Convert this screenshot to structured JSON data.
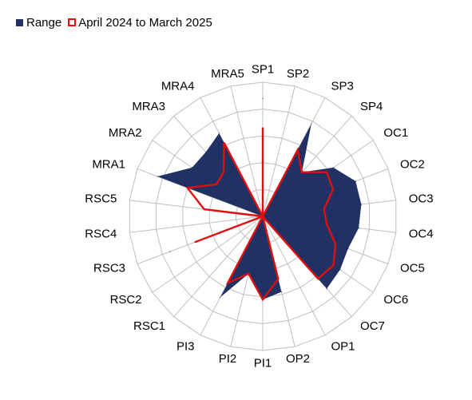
{
  "chart_data": {
    "type": "radar",
    "title": "",
    "categories": [
      "SP1",
      "SP2",
      "SP3",
      "SP4",
      "OC1",
      "OC2",
      "OC3",
      "OC4",
      "OC5",
      "OC6",
      "OC7",
      "OP1",
      "OP2",
      "PI1",
      "PI2",
      "PI3",
      "RSC1",
      "RSC2",
      "RSC3",
      "RSC4",
      "RSC5",
      "MRA1",
      "MRA2",
      "MRA3",
      "MRA4",
      "MRA5"
    ],
    "rlim": [
      0,
      5
    ],
    "grid": true,
    "legend_position": "top-left",
    "series": [
      {
        "name": "Range",
        "style": "filled-area",
        "color": "#213164",
        "upper": [
          4.4,
          0.0,
          3.9,
          2.2,
          3.2,
          3.7,
          3.7,
          3.6,
          3.4,
          3.5,
          3.6,
          0.0,
          2.9,
          3.1,
          2.2,
          3.4,
          0.0,
          0.0,
          3.7,
          0.0,
          0.0,
          4.2,
          3.2,
          3.2,
          3.5,
          0.0
        ],
        "lower": [
          0.0,
          0.0,
          0.0,
          0.0,
          0.0,
          0.0,
          0.0,
          0.0,
          0.0,
          0.0,
          0.0,
          0.0,
          0.0,
          0.0,
          0.0,
          0.0,
          0.0,
          0.0,
          0.0,
          0.0,
          0.0,
          0.0,
          0.0,
          0.0,
          0.0,
          0.0
        ]
      },
      {
        "name": "April 2024 to March 2025",
        "style": "line",
        "color": "#e00f0f",
        "values": [
          3.3,
          0.0,
          2.8,
          2.2,
          2.9,
          2.8,
          2.3,
          2.4,
          2.9,
          3.2,
          3.1,
          0.0,
          2.4,
          3.1,
          2.2,
          2.8,
          0.0,
          0.0,
          2.7,
          0.0,
          2.2,
          3.0,
          2.1,
          2.2,
          3.1,
          0.0
        ]
      }
    ]
  },
  "colors": {
    "grid": "#bfbfbf",
    "text": "#000000"
  }
}
